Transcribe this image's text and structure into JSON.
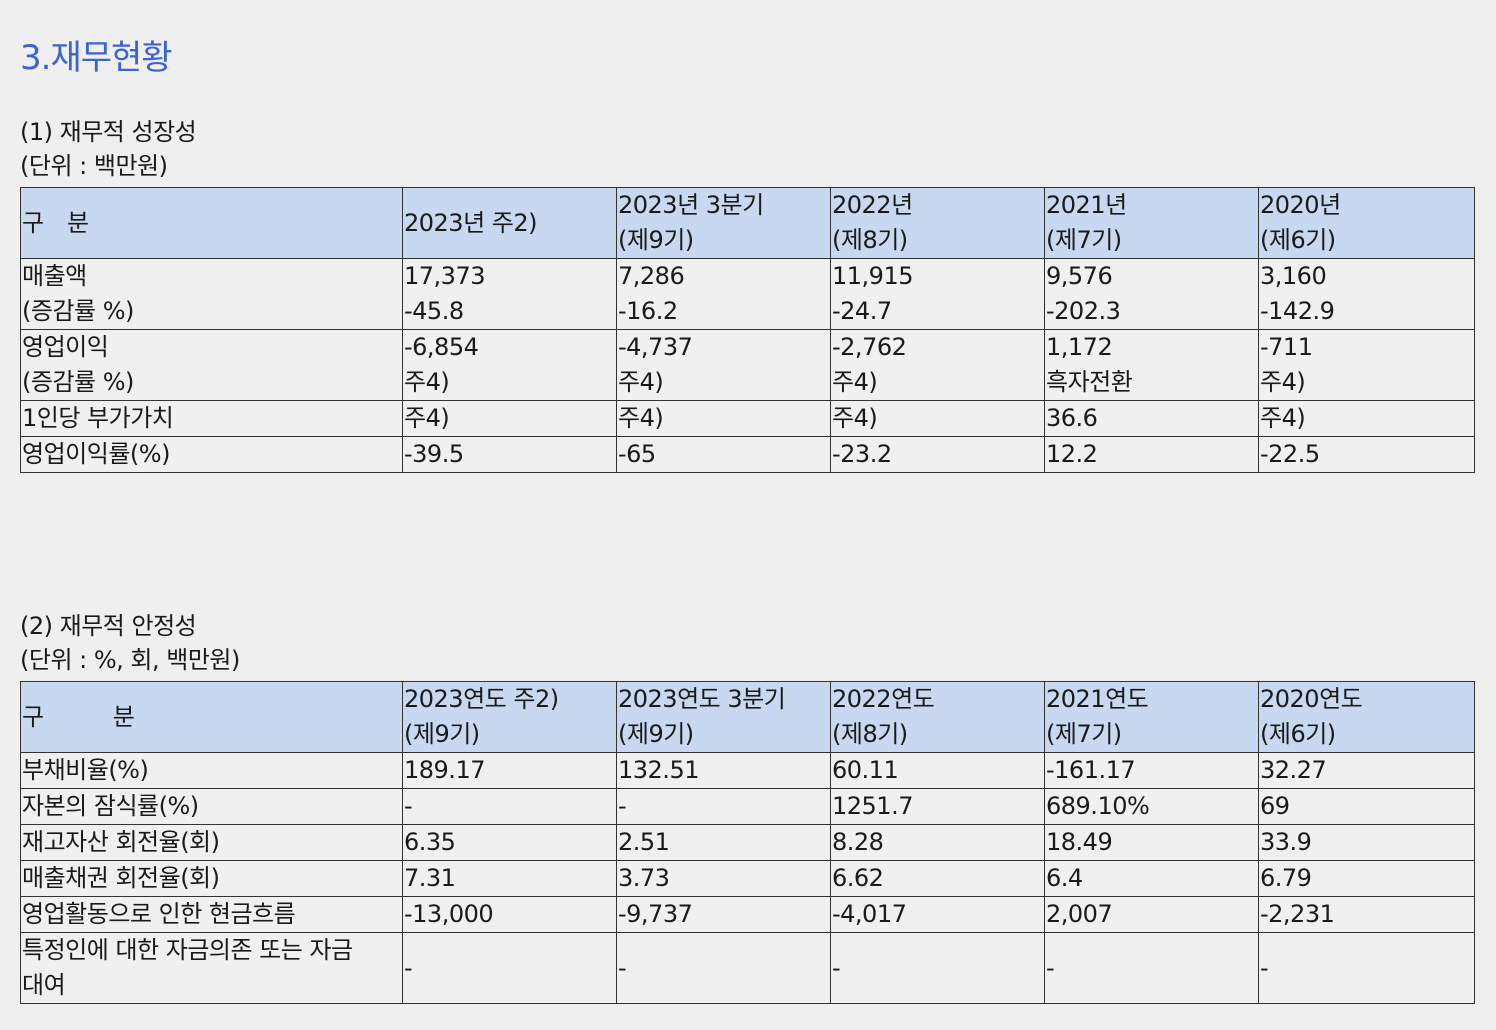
{
  "section_title": "3.재무현황",
  "growth": {
    "heading": "(1) 재무적 성장성",
    "unit": "(단위 : 백만원)",
    "header": {
      "label": "구   분",
      "cols": [
        {
          "line1": "2023년 주2)",
          "line2": ""
        },
        {
          "line1": "2023년 3분기",
          "line2": "(제9기)"
        },
        {
          "line1": "2022년",
          "line2": "(제8기)"
        },
        {
          "line1": "2021년",
          "line2": "(제7기)"
        },
        {
          "line1": "2020년",
          "line2": "(제6기)"
        }
      ]
    },
    "rows": [
      {
        "label1": "매출액",
        "label2": "(증감률 %)",
        "cells": [
          {
            "v1": "17,373",
            "v2": "-45.8"
          },
          {
            "v1": "7,286",
            "v2": "-16.2"
          },
          {
            "v1": "11,915",
            "v2": "-24.7"
          },
          {
            "v1": "9,576",
            "v2": "-202.3"
          },
          {
            "v1": "3,160",
            "v2": "-142.9"
          }
        ]
      },
      {
        "label1": "영업이익",
        "label2": "(증감률 %)",
        "cells": [
          {
            "v1": "-6,854",
            "v2": "주4)"
          },
          {
            "v1": "-4,737",
            "v2": "주4)"
          },
          {
            "v1": "-2,762",
            "v2": "주4)"
          },
          {
            "v1": "1,172",
            "v2": "흑자전환"
          },
          {
            "v1": "-711",
            "v2": "주4)"
          }
        ]
      },
      {
        "label1": "1인당 부가가치",
        "cells": [
          "주4)",
          "주4)",
          "주4)",
          "36.6",
          "주4)"
        ]
      },
      {
        "label1": "영업이익률(%)",
        "cells": [
          "-39.5",
          "-65",
          "-23.2",
          "12.2",
          "-22.5"
        ]
      }
    ]
  },
  "stability": {
    "heading": "(2) 재무적 안정성",
    "unit": "(단위 : %, 회, 백만원)",
    "header": {
      "label": "구         분",
      "cols": [
        {
          "line1": "2023연도 주2)",
          "line2": "(제9기)"
        },
        {
          "line1": "2023연도 3분기",
          "line2": "(제9기)"
        },
        {
          "line1": "2022연도",
          "line2": "(제8기)"
        },
        {
          "line1": "2021연도",
          "line2": "(제7기)"
        },
        {
          "line1": "2020연도",
          "line2": "(제6기)"
        }
      ]
    },
    "rows": [
      {
        "label": "부채비율(%)",
        "cells": [
          "189.17",
          "132.51",
          "60.11",
          "-161.17",
          "32.27"
        ]
      },
      {
        "label": "자본의 잠식률(%)",
        "cells": [
          "-",
          "-",
          "1251.7",
          "689.10%",
          "69"
        ]
      },
      {
        "label": "재고자산 회전율(회)",
        "cells": [
          "6.35",
          "2.51",
          "8.28",
          "18.49",
          "33.9"
        ]
      },
      {
        "label": "매출채권 회전율(회)",
        "cells": [
          "7.31",
          "3.73",
          "6.62",
          "6.4",
          "6.79"
        ]
      },
      {
        "label": "영업활동으로 인한 현금흐름",
        "cells": [
          "-13,000",
          "-9,737",
          "-4,017",
          "2,007",
          "-2,231"
        ]
      },
      {
        "label1": "특정인에 대한 자금의존 또는 자금",
        "label2": "대여",
        "cells": [
          "-",
          "-",
          "-",
          "-",
          "-"
        ]
      }
    ]
  }
}
